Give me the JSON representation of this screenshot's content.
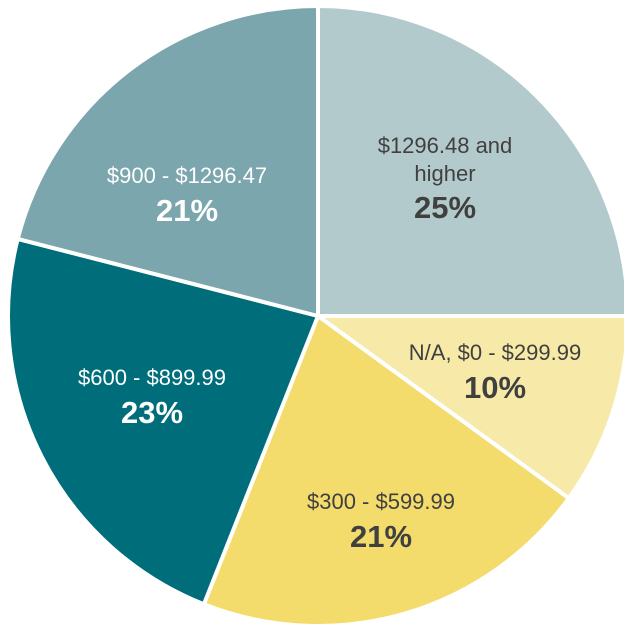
{
  "chart_data": {
    "type": "pie",
    "categories": [
      "$1296.48 and higher",
      "N/A, $0 - $299.99",
      "$300 - $599.99",
      "$600 - $899.99",
      "$900 - $1296.47"
    ],
    "values": [
      25,
      10,
      21,
      23,
      21
    ],
    "value_labels": [
      "25%",
      "10%",
      "21%",
      "23%",
      "21%"
    ],
    "colors": [
      "#b3cacd",
      "#f7eaa8",
      "#f3dc6c",
      "#006e7a",
      "#7ba6ad"
    ]
  }
}
